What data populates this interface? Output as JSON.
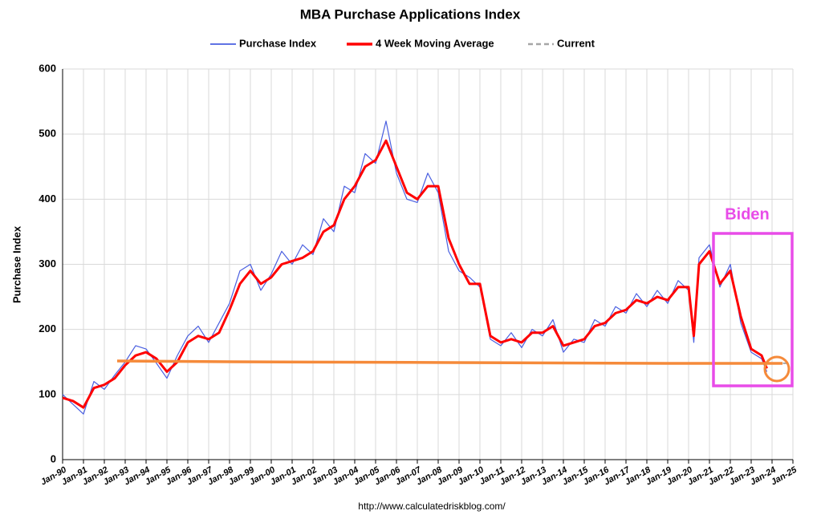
{
  "chart_data": {
    "type": "line",
    "title": "MBA Purchase Applications Index",
    "y_label": "Purchase Index",
    "source": "http://www.calculatedriskblog.com/",
    "annotation": "Biden",
    "x": [
      1990,
      1990.5,
      1991,
      1991.5,
      1992,
      1992.5,
      1993,
      1993.5,
      1994,
      1994.5,
      1995,
      1995.5,
      1996,
      1996.5,
      1997,
      1997.5,
      1998,
      1998.5,
      1999,
      1999.5,
      2000,
      2000.5,
      2001,
      2001.5,
      2002,
      2002.5,
      2003,
      2003.5,
      2004,
      2004.5,
      2005,
      2005.5,
      2006,
      2006.5,
      2007,
      2007.5,
      2008,
      2008.5,
      2009,
      2009.5,
      2010,
      2010.5,
      2011,
      2011.5,
      2012,
      2012.5,
      2013,
      2013.5,
      2014,
      2014.5,
      2015,
      2015.5,
      2016,
      2016.5,
      2017,
      2017.5,
      2018,
      2018.5,
      2019,
      2019.5,
      2020,
      2020.25,
      2020.5,
      2021,
      2021.5,
      2022,
      2022.5,
      2023,
      2023.5,
      2023.75
    ],
    "series": [
      {
        "name": "Purchase Index",
        "color": "#4a5fe0",
        "width": 1.2,
        "values": [
          100,
          85,
          70,
          120,
          108,
          130,
          150,
          175,
          170,
          148,
          125,
          160,
          190,
          205,
          180,
          210,
          240,
          290,
          300,
          260,
          285,
          320,
          300,
          330,
          315,
          370,
          350,
          420,
          410,
          470,
          455,
          520,
          440,
          400,
          395,
          440,
          410,
          320,
          290,
          280,
          265,
          185,
          175,
          195,
          172,
          200,
          190,
          215,
          165,
          185,
          180,
          215,
          205,
          235,
          225,
          255,
          235,
          260,
          240,
          275,
          260,
          180,
          310,
          330,
          265,
          300,
          210,
          165,
          155,
          135
        ]
      },
      {
        "name": "4 Week Moving Average",
        "color": "#ff0000",
        "width": 3,
        "values": [
          95,
          90,
          80,
          110,
          115,
          125,
          145,
          160,
          165,
          155,
          135,
          150,
          180,
          190,
          185,
          195,
          230,
          270,
          290,
          270,
          280,
          300,
          305,
          310,
          320,
          350,
          360,
          400,
          420,
          450,
          460,
          490,
          450,
          410,
          400,
          420,
          420,
          340,
          300,
          270,
          270,
          190,
          180,
          185,
          180,
          195,
          195,
          205,
          175,
          180,
          185,
          205,
          210,
          225,
          230,
          245,
          240,
          250,
          245,
          265,
          265,
          190,
          300,
          320,
          270,
          290,
          220,
          170,
          160,
          140
        ]
      },
      {
        "name": "Current",
        "color": "#a6a6a6",
        "width": 2,
        "dashed": true,
        "x": [
          2023.75,
          2025
        ],
        "values": [
          148,
          148
        ]
      }
    ],
    "xlim": [
      1990,
      2025
    ],
    "xticks": [
      {
        "value": 1990,
        "label": "Jan-90"
      },
      {
        "value": 1991,
        "label": "Jan-91"
      },
      {
        "value": 1992,
        "label": "Jan-92"
      },
      {
        "value": 1993,
        "label": "Jan-93"
      },
      {
        "value": 1994,
        "label": "Jan-94"
      },
      {
        "value": 1995,
        "label": "Jan-95"
      },
      {
        "value": 1996,
        "label": "Jan-96"
      },
      {
        "value": 1997,
        "label": "Jan-97"
      },
      {
        "value": 1998,
        "label": "Jan-98"
      },
      {
        "value": 1999,
        "label": "Jan-99"
      },
      {
        "value": 2000,
        "label": "Jan-00"
      },
      {
        "value": 2001,
        "label": "Jan-01"
      },
      {
        "value": 2002,
        "label": "Jan-02"
      },
      {
        "value": 2003,
        "label": "Jan-03"
      },
      {
        "value": 2004,
        "label": "Jan-04"
      },
      {
        "value": 2005,
        "label": "Jan-05"
      },
      {
        "value": 2006,
        "label": "Jan-06"
      },
      {
        "value": 2007,
        "label": "Jan-07"
      },
      {
        "value": 2008,
        "label": "Jan-08"
      },
      {
        "value": 2009,
        "label": "Jan-09"
      },
      {
        "value": 2010,
        "label": "Jan-10"
      },
      {
        "value": 2011,
        "label": "Jan-11"
      },
      {
        "value": 2012,
        "label": "Jan-12"
      },
      {
        "value": 2013,
        "label": "Jan-13"
      },
      {
        "value": 2014,
        "label": "Jan-14"
      },
      {
        "value": 2015,
        "label": "Jan-15"
      },
      {
        "value": 2016,
        "label": "Jan-16"
      },
      {
        "value": 2017,
        "label": "Jan-17"
      },
      {
        "value": 2018,
        "label": "Jan-18"
      },
      {
        "value": 2019,
        "label": "Jan-19"
      },
      {
        "value": 2020,
        "label": "Jan-20"
      },
      {
        "value": 2021,
        "label": "Jan-21"
      },
      {
        "value": 2022,
        "label": "Jan-22"
      },
      {
        "value": 2023,
        "label": "Jan-23"
      },
      {
        "value": 2024,
        "label": "Jan-24"
      },
      {
        "value": 2025,
        "label": "Jan-25"
      }
    ],
    "ylim": [
      0,
      600
    ],
    "yticks": [
      0,
      100,
      200,
      300,
      400,
      500,
      600
    ],
    "grid": true
  }
}
